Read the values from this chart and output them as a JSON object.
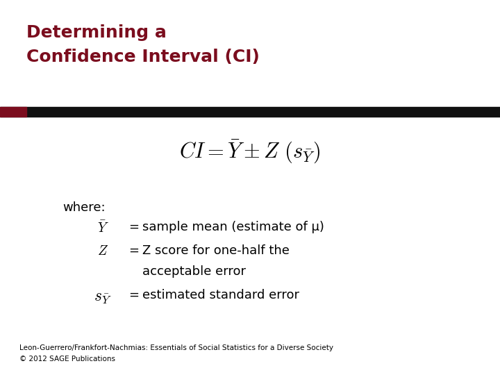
{
  "title_line1": "Determining a",
  "title_line2": "Confidence Interval (CI)",
  "title_color": "#7B0D1E",
  "bg_color": "#FFFFFF",
  "bar_color_dark": "#111111",
  "bar_color_red": "#7B0D1E",
  "formula": "$CI = \\bar{Y} \\pm Z\\ (s_{\\bar{Y}})$",
  "where_text": "where:",
  "line1_symbol": "$\\bar{Y}$",
  "line1_eq": "=",
  "line1_text": "sample mean (estimate of μ)",
  "line2_symbol": "$Z$",
  "line2_eq": "=",
  "line2_text": "Z score for one-half the",
  "line2_text2": "acceptable error",
  "line3_symbol": "$s_{\\bar{Y}}$",
  "line3_eq": "=",
  "line3_text": "estimated standard error",
  "footer1": "Leon-Guerrero/Frankfort-Nachmias: Essentials of Social Statistics for a Diverse Society",
  "footer2": "© 2012 SAGE Publications",
  "footer_fontsize": 7.5,
  "title_fontsize": 18,
  "formula_fontsize": 22,
  "body_fontsize": 13,
  "symbol_fontsize": 14
}
